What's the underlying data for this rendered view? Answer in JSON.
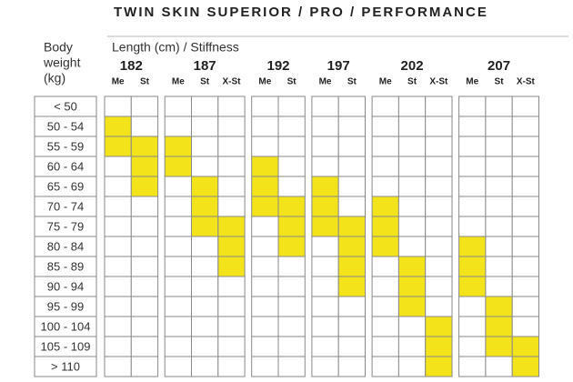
{
  "title": "TWIN SKIN SUPERIOR / PRO / PERFORMANCE",
  "row_header": [
    "Body",
    "weight",
    "(kg)"
  ],
  "column_header": "Length (cm) / Stiffness",
  "highlight_color": "#f2e31b",
  "weights": [
    "< 50",
    "50 - 54",
    "55 - 59",
    "60 - 64",
    "65 - 69",
    "70 - 74",
    "75 - 79",
    "80 - 84",
    "85 - 89",
    "90 - 94",
    "95 - 99",
    "100 - 104",
    "105 - 109",
    "> 110"
  ],
  "lengths": [
    {
      "length": "182",
      "columns": [
        {
          "stiffness": "Me",
          "filled": [
            false,
            true,
            true,
            false,
            false,
            false,
            false,
            false,
            false,
            false,
            false,
            false,
            false,
            false
          ]
        },
        {
          "stiffness": "St",
          "filled": [
            false,
            false,
            true,
            true,
            true,
            false,
            false,
            false,
            false,
            false,
            false,
            false,
            false,
            false
          ]
        }
      ]
    },
    {
      "length": "187",
      "columns": [
        {
          "stiffness": "Me",
          "filled": [
            false,
            false,
            true,
            true,
            false,
            false,
            false,
            false,
            false,
            false,
            false,
            false,
            false,
            false
          ]
        },
        {
          "stiffness": "St",
          "filled": [
            false,
            false,
            false,
            false,
            true,
            true,
            true,
            false,
            false,
            false,
            false,
            false,
            false,
            false
          ]
        },
        {
          "stiffness": "X-St",
          "filled": [
            false,
            false,
            false,
            false,
            false,
            false,
            true,
            true,
            true,
            false,
            false,
            false,
            false,
            false
          ]
        }
      ]
    },
    {
      "length": "192",
      "columns": [
        {
          "stiffness": "Me",
          "filled": [
            false,
            false,
            false,
            true,
            true,
            true,
            false,
            false,
            false,
            false,
            false,
            false,
            false,
            false
          ]
        },
        {
          "stiffness": "St",
          "filled": [
            false,
            false,
            false,
            false,
            false,
            true,
            true,
            true,
            false,
            false,
            false,
            false,
            false,
            false
          ]
        }
      ]
    },
    {
      "length": "197",
      "columns": [
        {
          "stiffness": "Me",
          "filled": [
            false,
            false,
            false,
            false,
            true,
            true,
            true,
            false,
            false,
            false,
            false,
            false,
            false,
            false
          ]
        },
        {
          "stiffness": "St",
          "filled": [
            false,
            false,
            false,
            false,
            false,
            false,
            true,
            true,
            true,
            true,
            false,
            false,
            false,
            false
          ]
        }
      ]
    },
    {
      "length": "202",
      "columns": [
        {
          "stiffness": "Me",
          "filled": [
            false,
            false,
            false,
            false,
            false,
            true,
            true,
            true,
            false,
            false,
            false,
            false,
            false,
            false
          ]
        },
        {
          "stiffness": "St",
          "filled": [
            false,
            false,
            false,
            false,
            false,
            false,
            false,
            false,
            true,
            true,
            true,
            false,
            false,
            false
          ]
        },
        {
          "stiffness": "X-St",
          "filled": [
            false,
            false,
            false,
            false,
            false,
            false,
            false,
            false,
            false,
            false,
            false,
            true,
            true,
            true
          ]
        }
      ]
    },
    {
      "length": "207",
      "columns": [
        {
          "stiffness": "Me",
          "filled": [
            false,
            false,
            false,
            false,
            false,
            false,
            false,
            true,
            true,
            true,
            false,
            false,
            false,
            false
          ]
        },
        {
          "stiffness": "St",
          "filled": [
            false,
            false,
            false,
            false,
            false,
            false,
            false,
            false,
            false,
            false,
            true,
            true,
            true,
            false
          ]
        },
        {
          "stiffness": "X-St",
          "filled": [
            false,
            false,
            false,
            false,
            false,
            false,
            false,
            false,
            false,
            false,
            false,
            false,
            true,
            true
          ]
        }
      ]
    }
  ]
}
